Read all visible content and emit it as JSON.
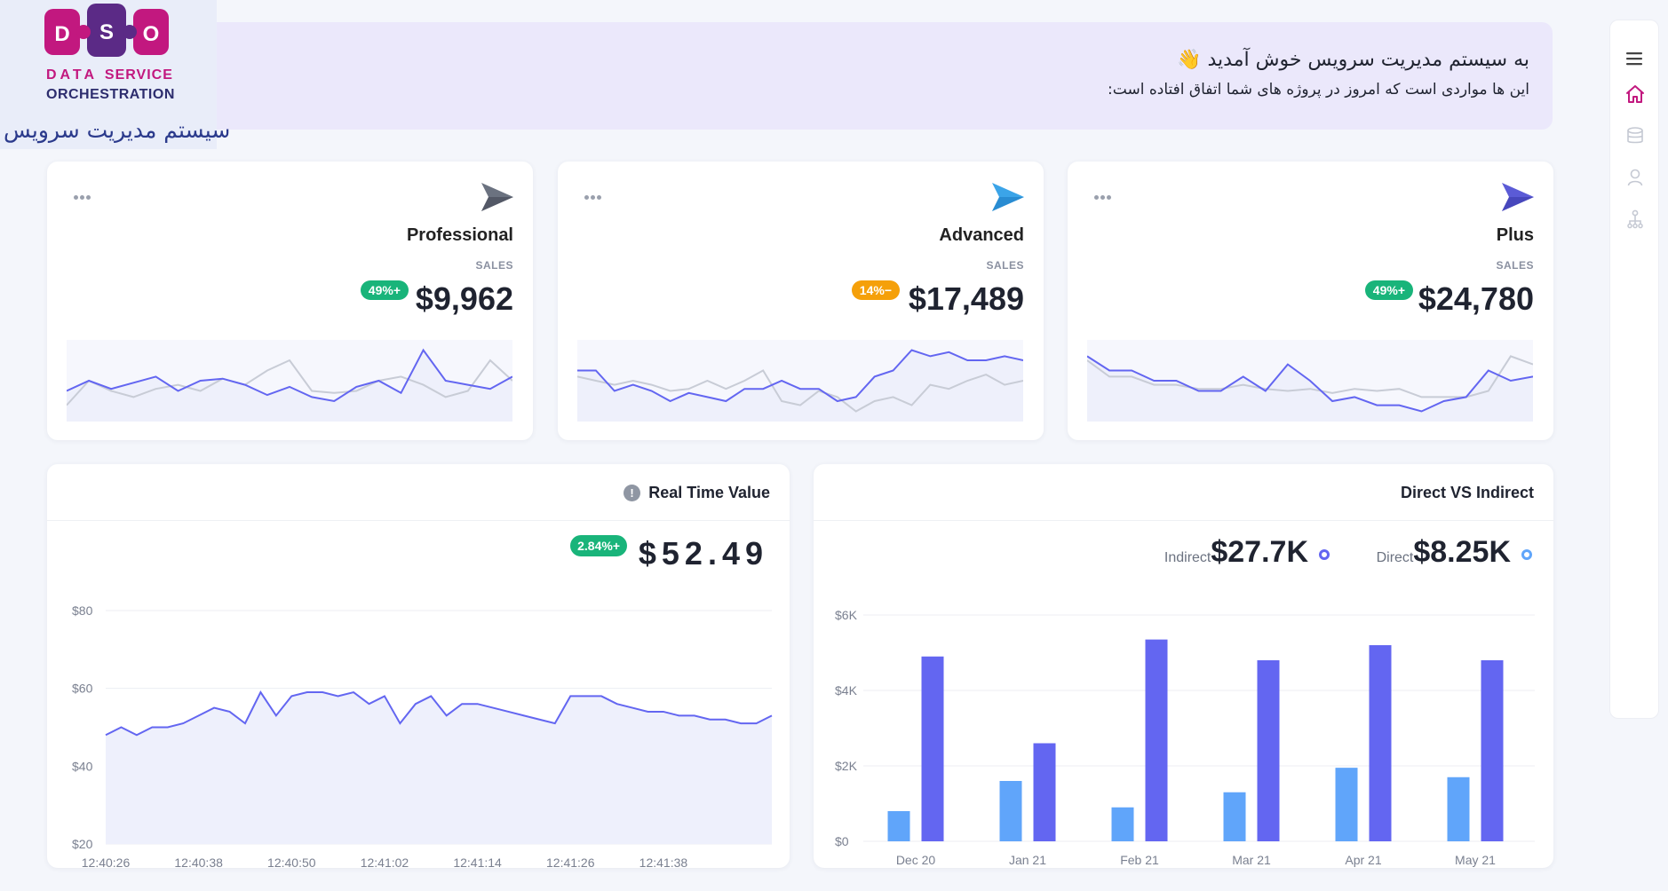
{
  "logo": {
    "letters": [
      "D",
      "S",
      "O"
    ],
    "line1_a": "DATA",
    "line1_b": "SERVICE",
    "line2": "ORCHESTRATION",
    "fa_title": "سیستم مدیریت سرویس"
  },
  "banner": {
    "title": "به سیستم مدیریت سرویس خوش آمدید 👋",
    "subtitle": "این ها مواردی است که امروز در پروژه های شما اتفاق افتاده است:"
  },
  "sidebar": {
    "icons": [
      "menu-icon",
      "home-icon",
      "database-icon",
      "user-icon",
      "hierarchy-icon"
    ],
    "active": "home-icon"
  },
  "colors": {
    "primary": "#6366f1",
    "secondary": "#60a5fa",
    "grey_line": "#c8ccd6",
    "fill": "#eef0fb",
    "green": "#19b47a",
    "orange": "#f5a00a"
  },
  "plans": [
    {
      "name": "Professional",
      "sales_label": "SALES",
      "amount": "$9,962",
      "badge": "49%+",
      "badge_color": "#19b47a",
      "plane_color": "#6b7280",
      "spark_primary": [
        55,
        60,
        56,
        59,
        62,
        55,
        60,
        61,
        58,
        53,
        57,
        52,
        50,
        57,
        60,
        54,
        75,
        60,
        58,
        56,
        62
      ],
      "spark_grey": [
        48,
        60,
        55,
        52,
        56,
        58,
        55,
        61,
        58,
        65,
        70,
        55,
        54,
        55,
        60,
        62,
        58,
        52,
        55,
        70,
        60
      ]
    },
    {
      "name": "Advanced",
      "sales_label": "SALES",
      "amount": "$17,489",
      "badge": "14%−",
      "badge_color": "#f5a00a",
      "plane_color": "#3ba4e8",
      "spark_primary": [
        65,
        65,
        55,
        58,
        55,
        50,
        54,
        52,
        50,
        56,
        56,
        60,
        56,
        56,
        50,
        52,
        62,
        65,
        75,
        72,
        74,
        70,
        70,
        72,
        70
      ],
      "spark_grey": [
        62,
        60,
        58,
        60,
        58,
        55,
        56,
        60,
        56,
        60,
        65,
        50,
        48,
        55,
        52,
        45,
        50,
        52,
        48,
        58,
        56,
        60,
        63,
        58,
        60
      ]
    },
    {
      "name": "Plus",
      "sales_label": "SALES",
      "amount": "$24,780",
      "badge": "49%+",
      "badge_color": "#19b47a",
      "plane_color": "#5b5bd6",
      "spark_primary": [
        72,
        65,
        65,
        60,
        60,
        55,
        55,
        62,
        55,
        68,
        60,
        50,
        52,
        48,
        48,
        45,
        50,
        52,
        65,
        60,
        62
      ],
      "spark_grey": [
        70,
        62,
        62,
        58,
        58,
        56,
        56,
        58,
        56,
        55,
        56,
        54,
        56,
        55,
        56,
        52,
        52,
        52,
        55,
        72,
        68
      ]
    }
  ],
  "realtime": {
    "title": "Real Time Value",
    "info_icon": "info-icon",
    "value": "$52.49",
    "badge": "2.84%+"
  },
  "direct": {
    "title": "Direct VS Indirect",
    "indirect_label": "Indirect",
    "indirect_value": "$27.7K",
    "direct_label": "Direct",
    "direct_value": "$8.25K"
  },
  "chart_data": [
    {
      "type": "area",
      "title": "Real Time Value",
      "ylim": [
        20,
        80
      ],
      "yticks": [
        "$20",
        "$40",
        "$60",
        "$80"
      ],
      "ytick_values": [
        20,
        40,
        60,
        80
      ],
      "xtick_labels": [
        "12:40:26",
        "12:40:38",
        "12:40:50",
        "12:41:02",
        "12:41:14",
        "12:41:26",
        "12:41:38"
      ],
      "x": [
        26,
        28,
        30,
        32,
        34,
        36,
        38,
        40,
        42,
        44,
        46,
        48,
        50,
        52,
        54,
        56,
        58,
        60,
        62,
        64,
        66,
        68,
        70,
        72,
        74,
        76,
        78,
        80,
        82,
        84,
        86,
        88,
        90,
        92,
        94,
        96,
        98,
        100,
        102,
        104,
        106,
        108,
        110,
        112
      ],
      "values": [
        48,
        50,
        48,
        50,
        50,
        51,
        53,
        55,
        54,
        51,
        59,
        53,
        58,
        59,
        59,
        58,
        59,
        56,
        58,
        51,
        56,
        58,
        53,
        56,
        56,
        55,
        54,
        53,
        52,
        51,
        58,
        58,
        58,
        56,
        55,
        54,
        54,
        53,
        53,
        52,
        52,
        51,
        51,
        53
      ],
      "xtick_positions": [
        26,
        38,
        50,
        62,
        74,
        86,
        98
      ],
      "xlim": [
        26,
        112
      ],
      "series_color": "#6366f1"
    },
    {
      "type": "bar",
      "title": "Direct VS Indirect",
      "categories": [
        "Dec 20",
        "Jan 21",
        "Feb 21",
        "Mar 21",
        "Apr 21",
        "May 21"
      ],
      "ylim": [
        0,
        6000
      ],
      "yticks": [
        "$0",
        "$2K",
        "$4K",
        "$6K"
      ],
      "ytick_values": [
        0,
        2000,
        4000,
        6000
      ],
      "series": [
        {
          "name": "Direct",
          "color": "#60a5fa",
          "values": [
            800,
            1600,
            900,
            1300,
            1950,
            1700
          ]
        },
        {
          "name": "Indirect",
          "color": "#6366f1",
          "values": [
            4900,
            2600,
            5350,
            4800,
            5200,
            4800
          ]
        }
      ]
    }
  ]
}
